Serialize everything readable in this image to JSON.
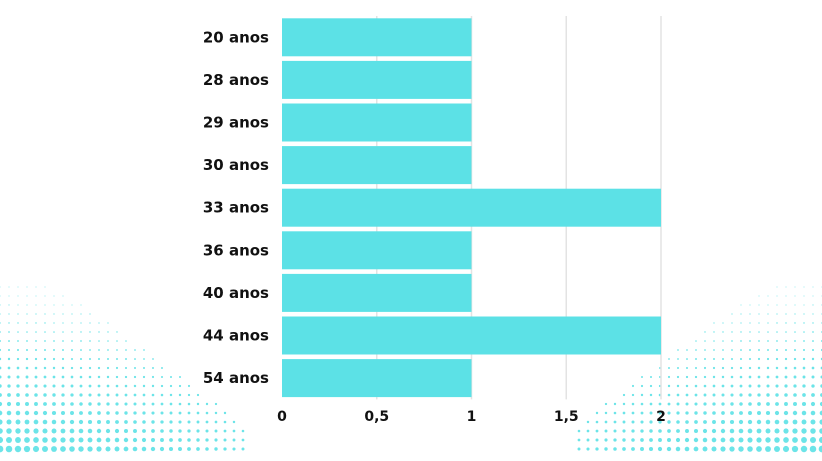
{
  "chart_data": {
    "type": "bar",
    "orientation": "horizontal",
    "categories": [
      "20 anos",
      "28 anos",
      "29 anos",
      "30 anos",
      "33 anos",
      "36 anos",
      "40 anos",
      "44 anos",
      "54 anos"
    ],
    "values": [
      1,
      1,
      1,
      1,
      2,
      1,
      1,
      2,
      1
    ],
    "xlim": [
      0,
      2
    ],
    "x_ticks": [
      0,
      0.5,
      1,
      1.5,
      2
    ],
    "x_tick_labels": [
      "0",
      "0,5",
      "1",
      "1,5",
      "2"
    ],
    "grid": "vertical",
    "bar_color": "#5ce1e6",
    "grid_color": "#e3e3e3",
    "decoration_color": "#5ce1e6"
  }
}
